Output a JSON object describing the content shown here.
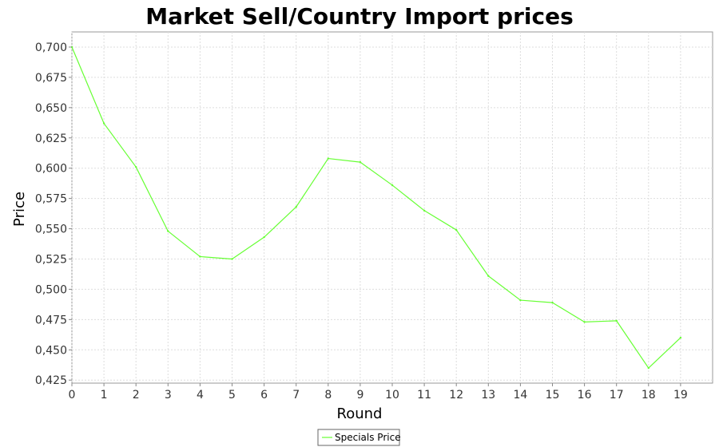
{
  "chart_data": {
    "type": "line",
    "title": "Market Sell/Country Import prices",
    "xlabel": "Round",
    "ylabel": "Price",
    "x": [
      0,
      1,
      2,
      3,
      4,
      5,
      6,
      7,
      8,
      9,
      10,
      11,
      12,
      13,
      14,
      15,
      16,
      17,
      18,
      19
    ],
    "xlim": [
      0,
      20
    ],
    "ylim": [
      0.4225,
      0.7125
    ],
    "y_ticks": [
      "0,425",
      "0,450",
      "0,475",
      "0,500",
      "0,525",
      "0,550",
      "0,575",
      "0,600",
      "0,625",
      "0,650",
      "0,675",
      "0,700"
    ],
    "y_tick_values": [
      0.425,
      0.45,
      0.475,
      0.5,
      0.525,
      0.55,
      0.575,
      0.6,
      0.625,
      0.65,
      0.675,
      0.7
    ],
    "x_ticks": [
      "0",
      "1",
      "2",
      "3",
      "4",
      "5",
      "6",
      "7",
      "8",
      "9",
      "10",
      "11",
      "12",
      "13",
      "14",
      "15",
      "16",
      "17",
      "18",
      "19"
    ],
    "grid": true,
    "legend_position": "bottom-center",
    "series": [
      {
        "name": "Specials Price",
        "color": "#66ff33",
        "values": [
          0.7,
          0.637,
          0.601,
          0.548,
          0.527,
          0.525,
          0.543,
          0.568,
          0.608,
          0.605,
          0.586,
          0.565,
          0.549,
          0.511,
          0.491,
          0.489,
          0.473,
          0.474,
          0.435,
          0.46
        ]
      }
    ]
  }
}
